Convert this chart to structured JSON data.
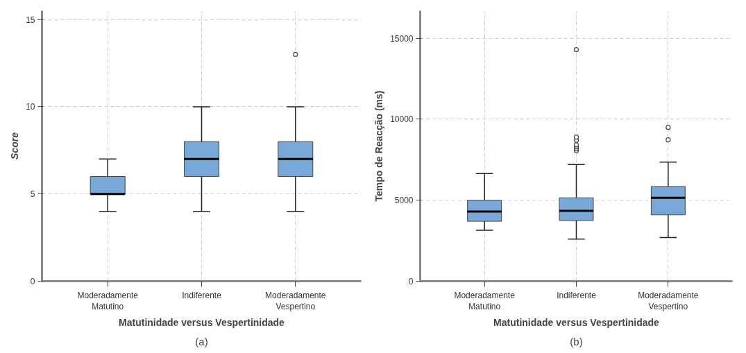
{
  "chart_data": [
    {
      "type": "box",
      "ylabel": "Score",
      "xlabel": "Matutinidade versus Vespertinidade",
      "categories": [
        "Moderadamente\nMatutino",
        "Indiferente",
        "Moderadamente\nVespertino"
      ],
      "series": [
        {
          "color": "#78a8d8",
          "boxes": [
            {
              "low": 4,
              "q1": 5,
              "median": 5,
              "q3": 6,
              "high": 7
            },
            {
              "low": 4,
              "q1": 6,
              "median": 7,
              "q3": 8,
              "high": 10
            },
            {
              "low": 4,
              "q1": 6,
              "median": 7,
              "q3": 8,
              "high": 10,
              "outliers": [
                13
              ]
            }
          ]
        }
      ],
      "ylim": [
        0,
        15.5
      ],
      "yticks": [
        0,
        5,
        10,
        15
      ],
      "grid": true,
      "annotations": [
        "(a)"
      ]
    },
    {
      "type": "box",
      "ylabel": "Tempo de Reacção (ms)",
      "xlabel": "Matutinidade versus Vespertinidade",
      "categories": [
        "Moderadamente\nMatutino",
        "Indiferente",
        "Moderadamente\nVespertino"
      ],
      "series": [
        {
          "color": "#78a8d8",
          "boxes": [
            {
              "low": 3150,
              "q1": 3700,
              "median": 4300,
              "q3": 5000,
              "high": 6650
            },
            {
              "low": 2600,
              "q1": 3750,
              "median": 4350,
              "q3": 5150,
              "high": 7200,
              "outliers": [
                8060,
                8170,
                8300,
                8420,
                8700,
                8900,
                14300
              ]
            },
            {
              "low": 2700,
              "q1": 4100,
              "median": 5150,
              "q3": 5850,
              "high": 7350,
              "outliers": [
                8730,
                9500
              ]
            }
          ]
        }
      ],
      "ylim": [
        0,
        16700
      ],
      "yticks": [
        0,
        5000,
        10000,
        15000
      ],
      "grid": true,
      "annotations": [
        "(b)"
      ]
    }
  ]
}
